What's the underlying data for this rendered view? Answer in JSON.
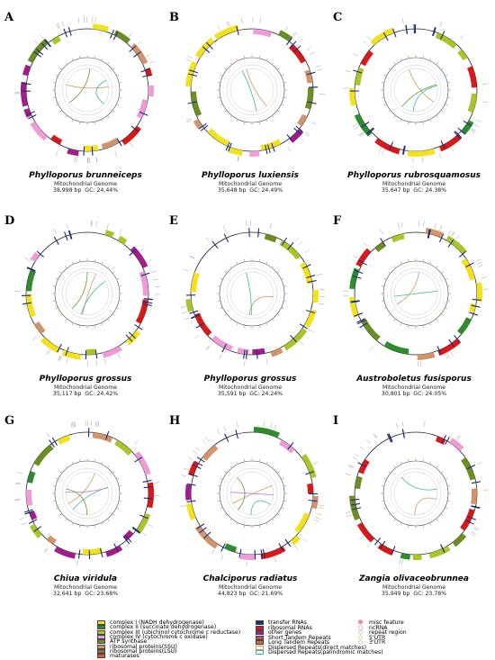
{
  "panels": [
    {
      "letter": "A",
      "species": "Phylloporus brunneiceps",
      "subtitle": "Mitochondrial Genome",
      "stats": "38,998 bp  GC: 24.44%"
    },
    {
      "letter": "B",
      "species": "Phylloporus luxiensis",
      "subtitle": "Mitochondrial Genome",
      "stats": "35,648 bp  GC: 24.49%"
    },
    {
      "letter": "C",
      "species": "Phylloporus rubrosquamosus",
      "subtitle": "Mitochondrial Genome",
      "stats": "35,647 bp  GC: 24.38%"
    },
    {
      "letter": "D",
      "species": "Phylloporus grossus",
      "subtitle": "Mitochondrial Genome",
      "stats": "35,117 bp  GC: 24.42%"
    },
    {
      "letter": "E",
      "species": "Phylloporus grossus",
      "subtitle": "Mitochondrial Genome",
      "stats": "35,591 bp  GC: 24.24%"
    },
    {
      "letter": "F",
      "species": "Austroboletus fusisporus",
      "subtitle": "Mitochondrial Genome",
      "stats": "30,801 bp  GC: 24.05%"
    },
    {
      "letter": "G",
      "species": "Chiua viridula",
      "subtitle": "Mitochondrial Genome",
      "stats": "32,641 bp  GC: 23.68%"
    },
    {
      "letter": "H",
      "species": "Chalciporus radiatus",
      "subtitle": "Mitochondrial Genome",
      "stats": "44,823 bp  GC: 21.69%"
    },
    {
      "letter": "I",
      "species": "Zangia olivaceobrunnea",
      "subtitle": "Mitochondrial Genome",
      "stats": "35,949 bp  GC: 23.78%"
    }
  ],
  "legend": {
    "col1": [
      {
        "label": "complex I (NADH dehydrogenase)",
        "color": "#f2e11d"
      },
      {
        "label": "complex II (succinate dehydrogenase)",
        "color": "#2e8b2e"
      },
      {
        "label": "complex III (ubichinol cytochrome c reductase)",
        "color": "#a8c52a"
      },
      {
        "label": "complex IV (cytochrome c oxidase)",
        "color": "#ee9bd8"
      },
      {
        "label": "ATP synthase",
        "color": "#6b8e23"
      },
      {
        "label": "ribosomal proteins(SSU)",
        "color": "#d2956b"
      },
      {
        "label": "ribosomal proteins(LSU)",
        "color": "#8b6b4a"
      },
      {
        "label": "maturases",
        "color": "#e2562a"
      }
    ],
    "col2": [
      {
        "label": "transfer RNAs",
        "color": "#1c2b7a",
        "outline": false
      },
      {
        "label": "ribosomal RNAs",
        "color": "#d7191c",
        "outline": false
      },
      {
        "label": "other genes",
        "color": "#a01d8a",
        "outline": false
      },
      {
        "label": "Short Tandem Repeats",
        "color": "#c5478a",
        "outline": false
      },
      {
        "label": "Long Tandem Repeats",
        "color": "#c2722e",
        "outline": false
      },
      {
        "label": "Dispersed Repeats(direct matches)",
        "color": "#d8955c",
        "outline": true
      },
      {
        "label": "Dispersed Repeats(palindromic matches)",
        "color": "#3cb89a",
        "outline": true
      }
    ],
    "col3": [
      {
        "label": "misc feature",
        "symbol": "⊗",
        "color": "#d7191c"
      },
      {
        "label": "ncRNA",
        "symbol": "○",
        "color": "#777777"
      },
      {
        "label": "repeat region",
        "symbol": "◇",
        "color": "#d8955c"
      },
      {
        "label": "5'UTR",
        "symbol": "◇",
        "color": "#7fb83a"
      },
      {
        "label": "3'UTR",
        "symbol": "◇",
        "color": "#d2956b"
      }
    ]
  }
}
